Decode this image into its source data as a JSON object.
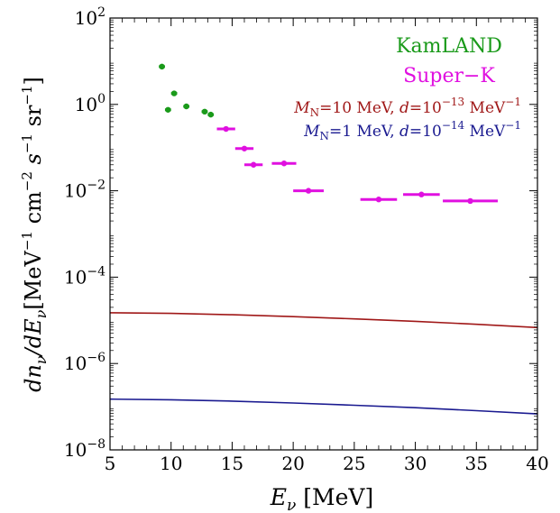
{
  "chart_data": {
    "type": "scatter",
    "xlim": [
      5,
      40
    ],
    "ylim": [
      1e-08,
      100
    ],
    "y_scale": "log",
    "grid": false,
    "legend_position": "top-right",
    "x_ticks": [
      5,
      10,
      15,
      20,
      25,
      30,
      35,
      40
    ],
    "x_tick_labels": [
      "5",
      "10",
      "15",
      "20",
      "25",
      "30",
      "35",
      "40"
    ],
    "y_ticks": [
      1e-08,
      1e-06,
      0.0001,
      0.01,
      1,
      100
    ],
    "y_tick_labels": [
      {
        "base": "10",
        "exp": "−8"
      },
      {
        "base": "10",
        "exp": "−6"
      },
      {
        "base": "10",
        "exp": "−4"
      },
      {
        "base": "10",
        "exp": "−2"
      },
      {
        "base": "10",
        "exp": "0"
      },
      {
        "base": "10",
        "exp": "2"
      }
    ],
    "xlabel": {
      "main": "E",
      "sub": "ν",
      "unit": " [MeV]"
    },
    "ylabel": {
      "p1": "dn",
      "sub1": "ν",
      "p2": "/dE",
      "sub2": "ν",
      "p3": "[MeV",
      "e1": "−1",
      "p4": " cm",
      "e2": "−2",
      "p5": " s",
      "e3": "−1",
      "p6": " sr",
      "e4": "−1",
      "p7": "]"
    },
    "series": [
      {
        "name": "KamLAND",
        "kind": "points",
        "color": "#1a9a1a",
        "points": [
          {
            "x": 9.25,
            "y": 7.5,
            "xerr": 0.25
          },
          {
            "x": 9.75,
            "y": 0.75,
            "xerr": 0.25
          },
          {
            "x": 10.25,
            "y": 1.8,
            "xerr": 0.25
          },
          {
            "x": 11.25,
            "y": 0.9,
            "xerr": 0.25
          },
          {
            "x": 12.75,
            "y": 0.68,
            "xerr": 0.25
          },
          {
            "x": 13.25,
            "y": 0.58,
            "xerr": 0.25
          }
        ]
      },
      {
        "name": "Super−K",
        "kind": "points",
        "color": "#e010e0",
        "points": [
          {
            "x": 14.5,
            "y": 0.27,
            "xerr": 0.75
          },
          {
            "x": 16.0,
            "y": 0.095,
            "xerr": 0.75
          },
          {
            "x": 16.75,
            "y": 0.04,
            "xerr": 0.75
          },
          {
            "x": 19.25,
            "y": 0.043,
            "xerr": 1.0
          },
          {
            "x": 21.25,
            "y": 0.01,
            "xerr": 1.25
          },
          {
            "x": 27.0,
            "y": 0.0063,
            "xerr": 1.5
          },
          {
            "x": 30.5,
            "y": 0.0082,
            "xerr": 1.5
          },
          {
            "x": 34.5,
            "y": 0.0058,
            "xerr": 2.25
          }
        ]
      },
      {
        "kind": "line",
        "color": "#a01818",
        "label": {
          "m": "M",
          "msub": "N",
          "mid": "=10 MeV, ",
          "d": "d",
          "eq": "=10",
          "dexp": "−13",
          "unit": " MeV",
          "uexp": "−1"
        },
        "x": [
          5,
          10,
          15,
          20,
          25,
          30,
          35,
          40
        ],
        "y": [
          1.5e-05,
          1.45e-05,
          1.35e-05,
          1.22e-05,
          1.08e-05,
          9.5e-06,
          8.1e-06,
          6.8e-06
        ]
      },
      {
        "kind": "line",
        "color": "#1a1a90",
        "label": {
          "m": "M",
          "msub": "N",
          "mid": "=1 MeV, ",
          "d": "d",
          "eq": "=10",
          "dexp": "−14",
          "unit": " MeV",
          "uexp": "−1"
        },
        "x": [
          5,
          10,
          15,
          20,
          25,
          30,
          35,
          40
        ],
        "y": [
          1.5e-07,
          1.45e-07,
          1.35e-07,
          1.22e-07,
          1.08e-07,
          9.5e-08,
          8.1e-08,
          6.8e-08
        ]
      }
    ]
  }
}
